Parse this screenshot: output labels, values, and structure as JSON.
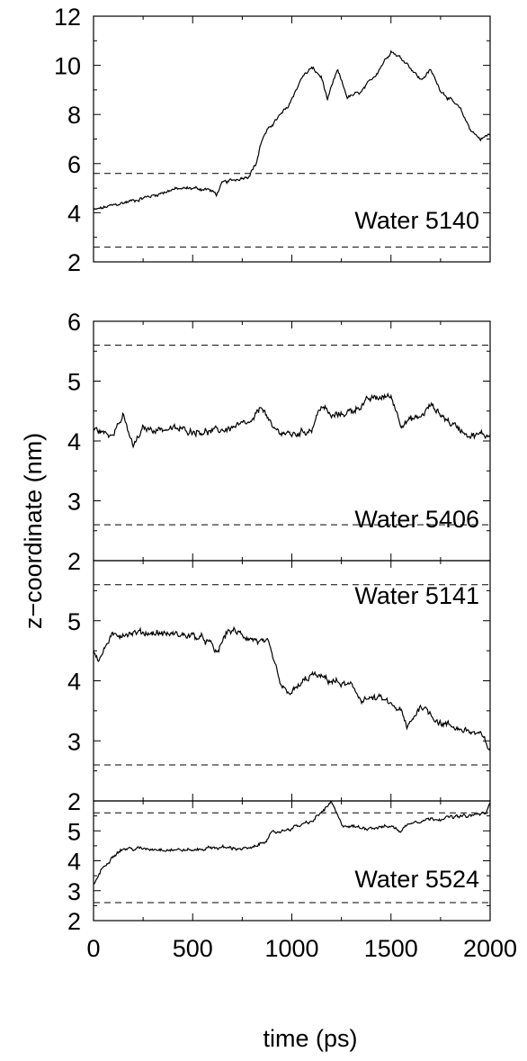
{
  "chart_data": {
    "type": "line",
    "xlabel": "time (ps)",
    "ylabel": "z−coordinate (nm)",
    "x_ticks": [
      "0",
      "500",
      "1000",
      "1500",
      "2000"
    ],
    "xlim": [
      0,
      2000
    ],
    "grid": false,
    "line_color": "#000000",
    "reference_lines": [
      2.6,
      5.6
    ],
    "panels": [
      {
        "label": "Water 5140",
        "ylim": [
          2,
          12
        ],
        "y_ticks": [
          "2",
          "4",
          "6",
          "8",
          "10",
          "12"
        ],
        "anchors": [
          [
            0,
            4.1
          ],
          [
            100,
            4.3
          ],
          [
            200,
            4.5
          ],
          [
            300,
            4.7
          ],
          [
            400,
            4.95
          ],
          [
            500,
            5.0
          ],
          [
            580,
            4.95
          ],
          [
            620,
            4.75
          ],
          [
            650,
            5.2
          ],
          [
            780,
            5.5
          ],
          [
            820,
            6.0
          ],
          [
            850,
            7.0
          ],
          [
            900,
            7.6
          ],
          [
            980,
            8.3
          ],
          [
            1050,
            9.5
          ],
          [
            1100,
            9.9
          ],
          [
            1150,
            9.5
          ],
          [
            1180,
            8.6
          ],
          [
            1230,
            9.8
          ],
          [
            1280,
            8.7
          ],
          [
            1350,
            8.9
          ],
          [
            1420,
            9.6
          ],
          [
            1500,
            10.6
          ],
          [
            1580,
            10.1
          ],
          [
            1650,
            9.4
          ],
          [
            1700,
            9.8
          ],
          [
            1750,
            9.0
          ],
          [
            1850,
            8.2
          ],
          [
            1900,
            7.4
          ],
          [
            1950,
            7.0
          ],
          [
            2000,
            7.2
          ]
        ]
      },
      {
        "label": "Water 5406",
        "ylim": [
          2,
          6
        ],
        "y_ticks": [
          "2",
          "3",
          "4",
          "5",
          "6"
        ],
        "anchors": [
          [
            0,
            4.2
          ],
          [
            80,
            4.1
          ],
          [
            150,
            4.4
          ],
          [
            200,
            3.9
          ],
          [
            250,
            4.2
          ],
          [
            400,
            4.2
          ],
          [
            600,
            4.15
          ],
          [
            800,
            4.3
          ],
          [
            850,
            4.6
          ],
          [
            900,
            4.2
          ],
          [
            1000,
            4.1
          ],
          [
            1100,
            4.2
          ],
          [
            1150,
            4.6
          ],
          [
            1200,
            4.4
          ],
          [
            1300,
            4.5
          ],
          [
            1400,
            4.7
          ],
          [
            1500,
            4.75
          ],
          [
            1550,
            4.3
          ],
          [
            1650,
            4.4
          ],
          [
            1700,
            4.6
          ],
          [
            1800,
            4.3
          ],
          [
            1900,
            4.1
          ],
          [
            2000,
            4.1
          ]
        ]
      },
      {
        "label": "Water 5141",
        "ylim": [
          2,
          6
        ],
        "y_ticks": [
          "2",
          "3",
          "4",
          "5"
        ],
        "anchors": [
          [
            0,
            4.5
          ],
          [
            30,
            4.35
          ],
          [
            80,
            4.7
          ],
          [
            150,
            4.8
          ],
          [
            300,
            4.8
          ],
          [
            500,
            4.75
          ],
          [
            580,
            4.65
          ],
          [
            620,
            4.45
          ],
          [
            680,
            4.85
          ],
          [
            800,
            4.7
          ],
          [
            880,
            4.6
          ],
          [
            920,
            4.2
          ],
          [
            950,
            3.85
          ],
          [
            1000,
            3.8
          ],
          [
            1100,
            4.1
          ],
          [
            1200,
            4.0
          ],
          [
            1300,
            3.9
          ],
          [
            1350,
            3.7
          ],
          [
            1450,
            3.7
          ],
          [
            1550,
            3.5
          ],
          [
            1580,
            3.2
          ],
          [
            1650,
            3.6
          ],
          [
            1750,
            3.3
          ],
          [
            1850,
            3.2
          ],
          [
            1950,
            3.1
          ],
          [
            2000,
            2.85
          ]
        ]
      },
      {
        "label": "Water 5524",
        "ylim": [
          2,
          6
        ],
        "y_ticks": [
          "2",
          "3",
          "4",
          "5"
        ],
        "anchors": [
          [
            0,
            3.2
          ],
          [
            40,
            3.7
          ],
          [
            100,
            4.2
          ],
          [
            150,
            4.4
          ],
          [
            300,
            4.4
          ],
          [
            500,
            4.35
          ],
          [
            600,
            4.45
          ],
          [
            800,
            4.4
          ],
          [
            850,
            4.6
          ],
          [
            900,
            4.9
          ],
          [
            1000,
            5.1
          ],
          [
            1100,
            5.3
          ],
          [
            1200,
            5.95
          ],
          [
            1250,
            5.2
          ],
          [
            1350,
            5.1
          ],
          [
            1500,
            5.15
          ],
          [
            1550,
            5.0
          ],
          [
            1600,
            5.3
          ],
          [
            1700,
            5.4
          ],
          [
            1800,
            5.45
          ],
          [
            1900,
            5.5
          ],
          [
            1980,
            5.6
          ],
          [
            2000,
            5.9
          ]
        ]
      }
    ]
  }
}
